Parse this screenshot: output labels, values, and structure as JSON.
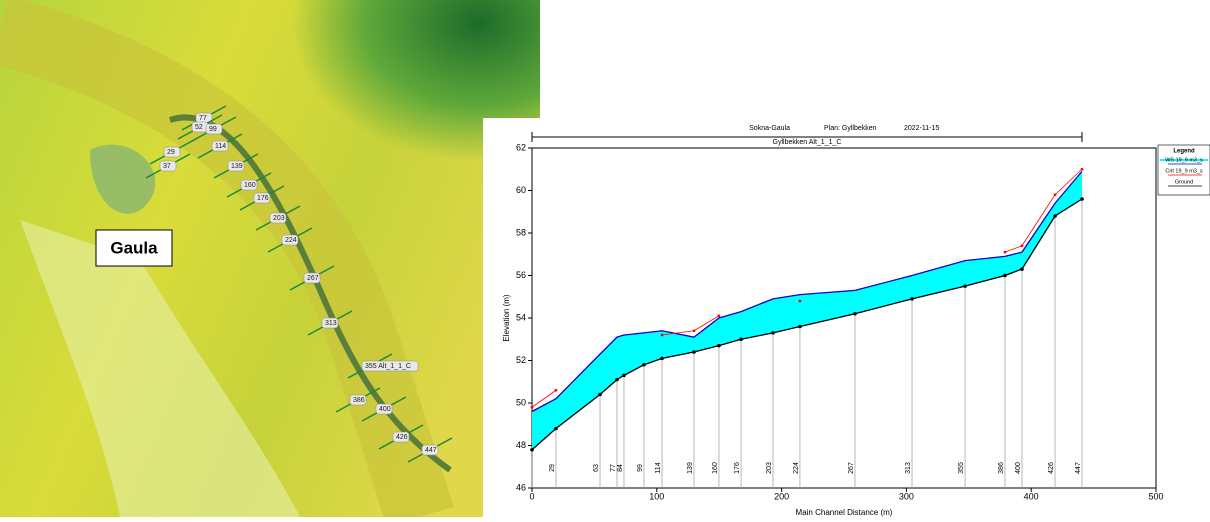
{
  "map": {
    "label": "Gaula",
    "stations": [
      "29",
      "37",
      "77",
      "52",
      "99",
      "114",
      "139",
      "160",
      "176",
      "203",
      "224",
      "267",
      "313",
      "355 Alt_1_1_C",
      "386",
      "400",
      "426",
      "447"
    ]
  },
  "chart_data": {
    "type": "line",
    "title": "Sokna-Gaula",
    "plan": "Plan: Gyllbekken",
    "date": "2022-11-15",
    "subtitle": "Gyllbekken Alt_1_1_C",
    "x_label": "Main Channel Distance (m)",
    "y_label": "Elevation (m)",
    "legend_title": "Legend",
    "x": [
      0,
      19.2,
      54.5,
      68.1,
      73.7,
      89.7,
      104.2,
      129.8,
      149.8,
      167.5,
      193.1,
      214.7,
      258.8,
      304.5,
      347.0,
      379.0,
      392.6,
      419.1,
      440.7
    ],
    "stations": [
      null,
      "29",
      "63",
      "77",
      "84",
      "99",
      "114",
      "139",
      "160",
      "176",
      "203",
      "224",
      "267",
      "313",
      "355",
      "386",
      "400",
      "426",
      "447"
    ],
    "series": [
      {
        "name": "WS 19_9 m3_s",
        "color": "#0000cc",
        "fill": "#00ffff",
        "values": [
          49.6,
          50.2,
          52.3,
          53.1,
          53.2,
          53.3,
          53.4,
          53.1,
          54.0,
          54.3,
          54.9,
          55.1,
          55.3,
          56.0,
          56.7,
          56.9,
          57.1,
          59.4,
          60.9
        ]
      },
      {
        "name": "Crit 19_9 m3_s",
        "color": "#ff0000",
        "values": [
          49.8,
          50.6,
          null,
          null,
          null,
          null,
          53.2,
          53.4,
          54.1,
          null,
          null,
          54.8,
          null,
          null,
          null,
          57.1,
          57.4,
          59.8,
          61.0
        ]
      },
      {
        "name": "Ground",
        "color": "#000000",
        "values": [
          47.8,
          48.8,
          50.4,
          51.1,
          51.3,
          51.8,
          52.1,
          52.4,
          52.7,
          53.0,
          53.3,
          53.6,
          54.2,
          54.9,
          55.5,
          56.0,
          56.3,
          58.8,
          59.6
        ]
      }
    ],
    "xlim": [
      0,
      500
    ],
    "xticks": [
      0,
      100,
      200,
      300,
      400,
      500
    ],
    "ylim": [
      46,
      62
    ],
    "yticks": [
      46,
      48,
      50,
      52,
      54,
      56,
      58,
      60,
      62
    ]
  }
}
